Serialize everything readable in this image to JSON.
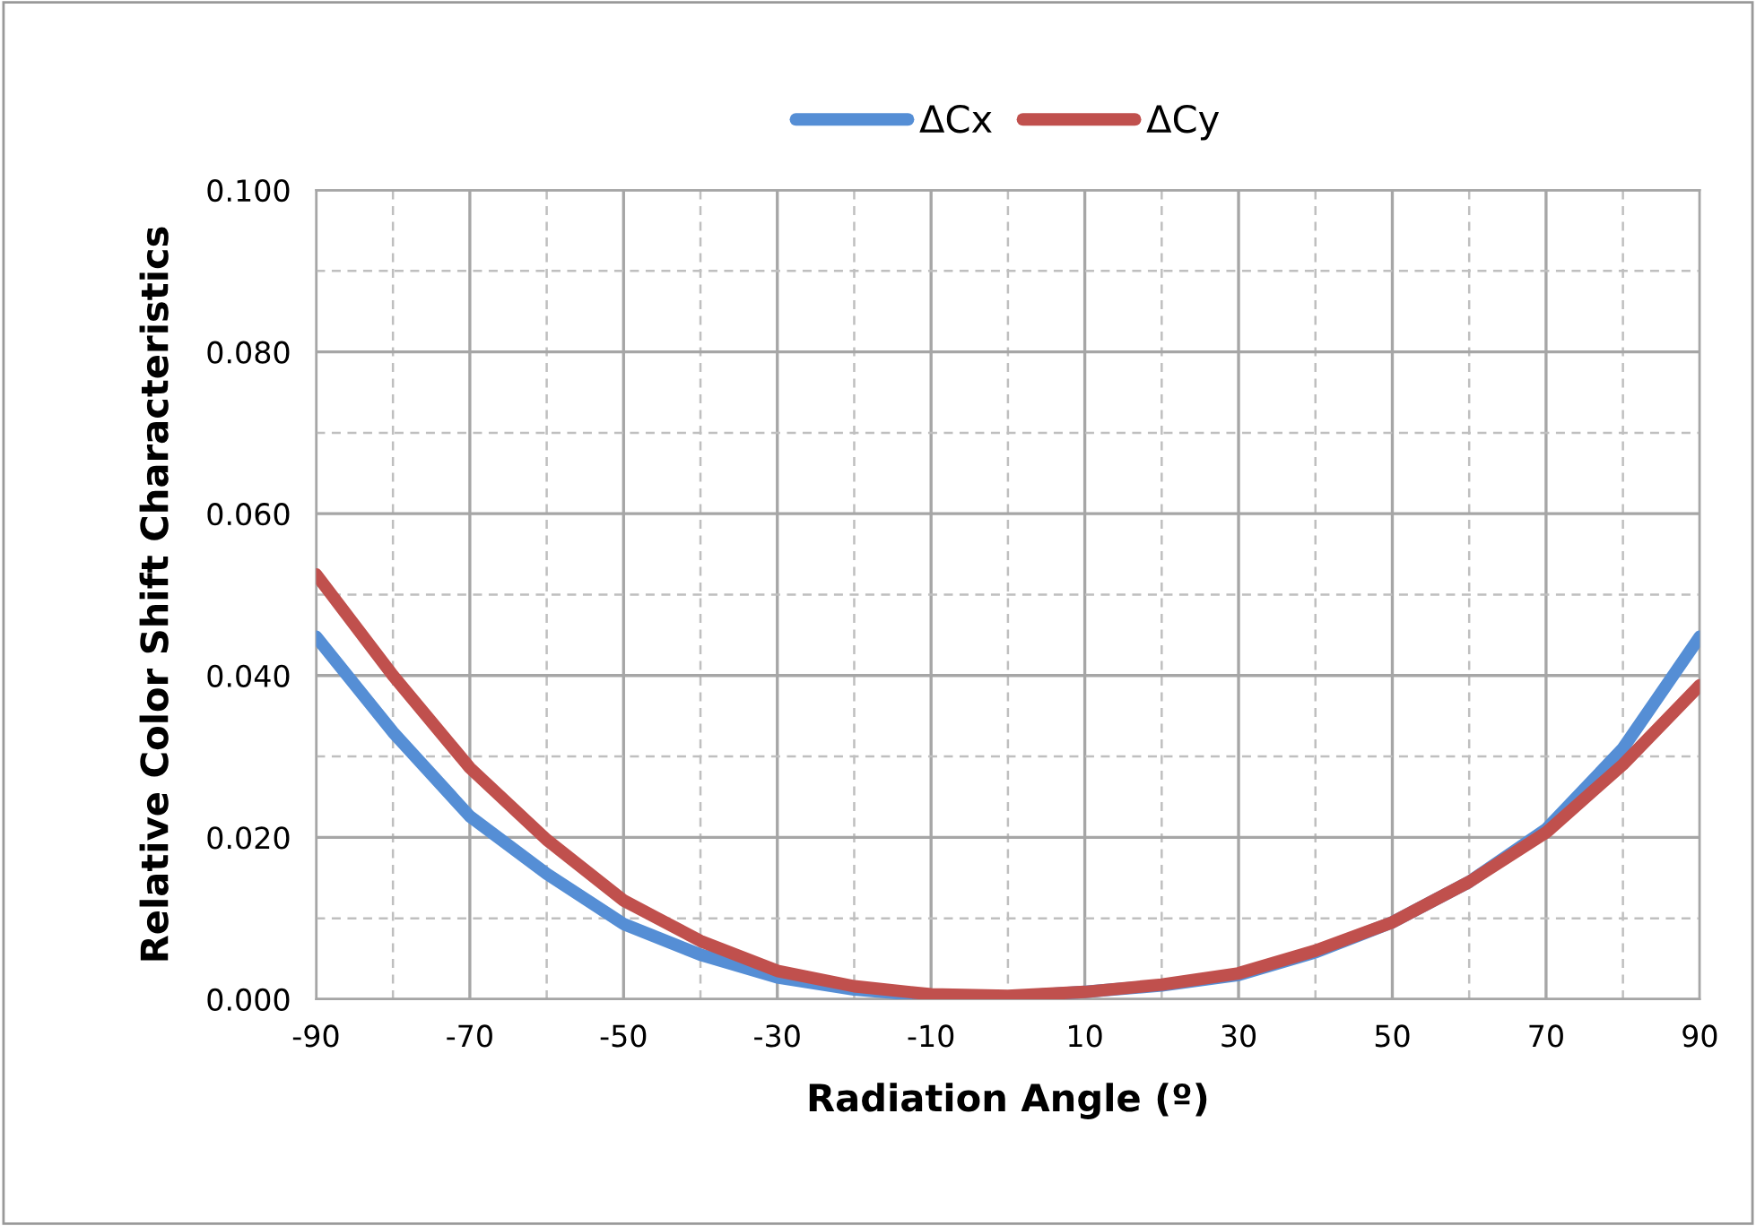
{
  "chart_data": {
    "type": "line",
    "xlabel": "Radiation Angle (º)",
    "ylabel": "Relative Color Shift Characteristics",
    "x": [
      -90,
      -80,
      -70,
      -60,
      -50,
      -40,
      -30,
      -20,
      -10,
      0,
      10,
      20,
      30,
      40,
      50,
      60,
      70,
      80,
      90
    ],
    "series": [
      {
        "name": "ΔCx",
        "color": "#558ed5",
        "values": [
          0.0448,
          0.033,
          0.0226,
          0.0155,
          0.0093,
          0.0055,
          0.0027,
          0.0012,
          0.0004,
          0.0003,
          0.0009,
          0.0017,
          0.003,
          0.0058,
          0.0095,
          0.0145,
          0.021,
          0.031,
          0.0448
        ]
      },
      {
        "name": "ΔCy",
        "color": "#c0504d",
        "values": [
          0.0525,
          0.04,
          0.0286,
          0.0197,
          0.0122,
          0.0072,
          0.0035,
          0.0016,
          0.0006,
          0.0004,
          0.0009,
          0.0018,
          0.0032,
          0.006,
          0.0095,
          0.0145,
          0.0206,
          0.029,
          0.0388
        ]
      }
    ],
    "xlim": [
      -90,
      90
    ],
    "xticks": [
      -90,
      {
        "value": -80,
        "label": null
      },
      -70,
      {
        "value": -60,
        "label": null
      },
      -50,
      {
        "value": -40,
        "label": null
      },
      -30,
      {
        "value": -20,
        "label": null
      },
      -10,
      {
        "value": 0,
        "label": null
      },
      10,
      {
        "value": 20,
        "label": null
      },
      30,
      {
        "value": 40,
        "label": null
      },
      50,
      {
        "value": 60,
        "label": null
      },
      70,
      {
        "value": 80,
        "label": null
      },
      90
    ],
    "ylim": [
      0,
      0.1
    ],
    "yticks": [
      {
        "value": 0,
        "label": "0.000"
      },
      {
        "value": 0.01,
        "label": null
      },
      {
        "value": 0.02,
        "label": "0.020"
      },
      {
        "value": 0.03,
        "label": null
      },
      {
        "value": 0.04,
        "label": "0.040"
      },
      {
        "value": 0.05,
        "label": null
      },
      {
        "value": 0.06,
        "label": "0.060"
      },
      {
        "value": 0.07,
        "label": null
      },
      {
        "value": 0.08,
        "label": "0.080"
      },
      {
        "value": 0.09,
        "label": null
      },
      {
        "value": 0.1,
        "label": "0.100"
      }
    ],
    "grid": true,
    "legend": "top",
    "marker": "none",
    "line_style": "solid"
  }
}
